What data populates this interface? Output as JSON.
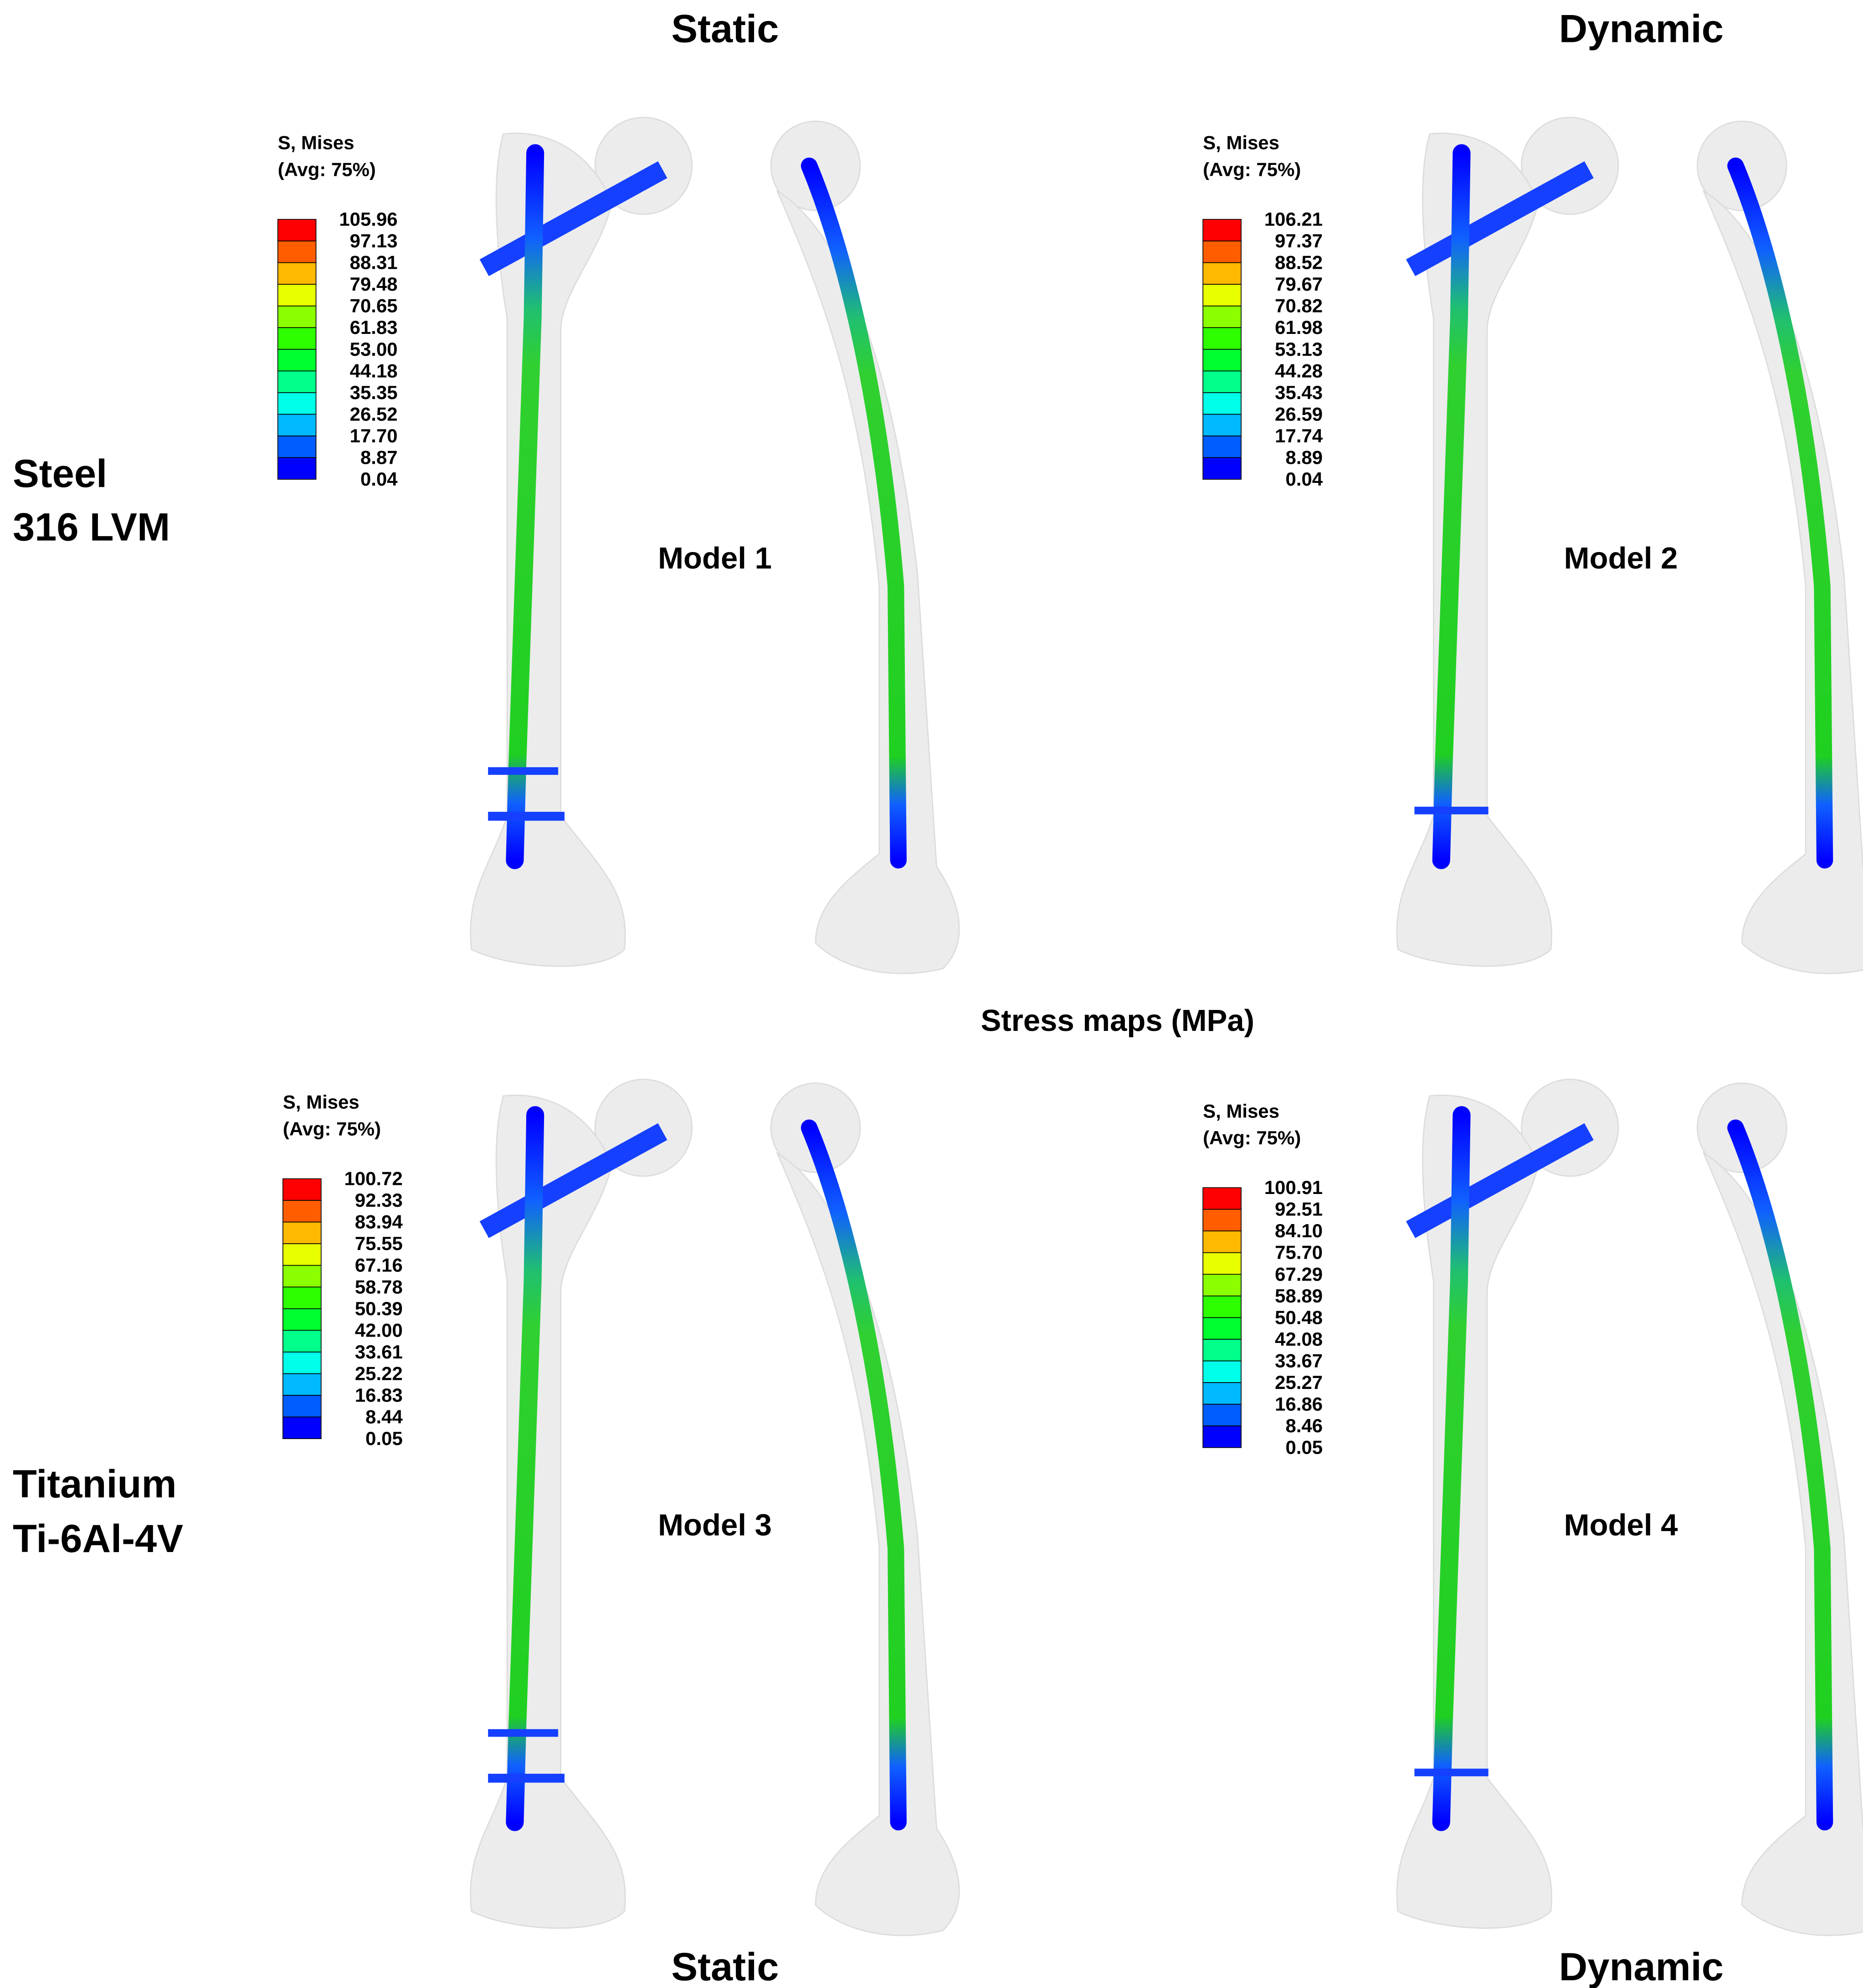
{
  "column_headers_top": [
    "Static",
    "Dynamic"
  ],
  "column_headers_bottom": [
    "Static",
    "Dynamic"
  ],
  "row_labels": [
    [
      "Steel",
      "316 LVM"
    ],
    [
      "Titanium",
      "Ti-6Al-4V"
    ]
  ],
  "center_label": "Stress maps (MPa)",
  "colorbar_colors": [
    "#ff0000",
    "#ff5d00",
    "#ffb900",
    "#e8ff00",
    "#8bff00",
    "#2eff00",
    "#00ff2e",
    "#00ff8b",
    "#00ffe8",
    "#00b9ff",
    "#005dff",
    "#0000ff"
  ],
  "panels": [
    {
      "model": "Model 1",
      "legend_title": [
        "S, Mises",
        "(Avg: 75%)"
      ],
      "legend_values": [
        "105.96",
        "97.13",
        "88.31",
        "79.48",
        "70.65",
        "61.83",
        "53.00",
        "44.18",
        "35.35",
        "26.52",
        "17.70",
        "8.87",
        "0.04"
      ]
    },
    {
      "model": "Model 2",
      "legend_title": [
        "S, Mises",
        "(Avg: 75%)"
      ],
      "legend_values": [
        "106.21",
        "97.37",
        "88.52",
        "79.67",
        "70.82",
        "61.98",
        "53.13",
        "44.28",
        "35.43",
        "26.59",
        "17.74",
        "8.89",
        "0.04"
      ]
    },
    {
      "model": "Model 3",
      "legend_title": [
        "S, Mises",
        "(Avg: 75%)"
      ],
      "legend_values": [
        "100.72",
        "92.33",
        "83.94",
        "75.55",
        "67.16",
        "58.78",
        "50.39",
        "42.00",
        "33.61",
        "25.22",
        "16.83",
        "8.44",
        "0.05"
      ]
    },
    {
      "model": "Model 4",
      "legend_title": [
        "S, Mises",
        "(Avg: 75%)"
      ],
      "legend_values": [
        "100.91",
        "92.51",
        "84.10",
        "75.70",
        "67.29",
        "58.89",
        "50.48",
        "42.08",
        "33.67",
        "25.27",
        "16.86",
        "8.46",
        "0.05"
      ]
    }
  ]
}
